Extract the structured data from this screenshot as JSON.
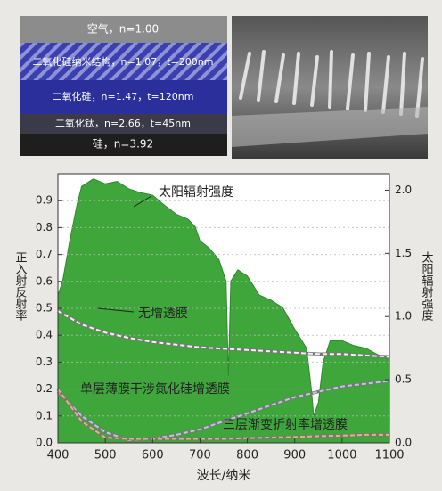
{
  "layers": [
    "空气，n=1.00",
    "二氧化硅纳米结构，n=1.07，t=200nm",
    "二氧化硅，n=1.47，t=120nm",
    "二氧化钛，n=2.66，t=45nm",
    "硅，n=3.92"
  ],
  "chart_data": {
    "type": "line",
    "xlabel": "波长/纳米",
    "ylabel": "正入射反射率",
    "y2label": "太阳辐射强度",
    "annotations": [
      "太阳辐射强度",
      "无增透膜",
      "单层薄膜干涉氮化硅增透膜",
      "三层渐变折射率增透膜"
    ],
    "xlim": [
      400,
      1100
    ],
    "xticks": [
      400,
      500,
      600,
      700,
      800,
      900,
      1000,
      1100
    ],
    "ylim": [
      0,
      1.0
    ],
    "yticks": [
      {
        "value": 0,
        "label": "0.0"
      },
      0.1,
      0.2,
      0.3,
      0.4,
      0.5,
      0.6,
      0.7,
      0.8,
      0.9
    ],
    "y2lim": [
      0,
      2.13
    ],
    "y2ticks": [
      {
        "value": 0,
        "label": "0.0"
      },
      0.5,
      {
        "value": 1,
        "label": "1.0"
      },
      1.5,
      {
        "value": 2,
        "label": "2.0"
      }
    ],
    "grid": true,
    "series": [
      {
        "name": "太阳辐射强度",
        "type": "area",
        "axis": "y2",
        "color": "#3fa63c",
        "x": [
          400,
          410,
          425,
          440,
          450,
          475,
          500,
          525,
          550,
          575,
          600,
          625,
          650,
          675,
          690,
          700,
          720,
          740,
          755,
          760,
          765,
          780,
          800,
          825,
          850,
          875,
          900,
          925,
          935,
          940,
          950,
          960,
          975,
          1000,
          1025,
          1050,
          1075,
          1100
        ],
        "values": [
          1.17,
          1.28,
          1.6,
          1.88,
          2.03,
          2.09,
          2.05,
          2.07,
          2.01,
          1.98,
          1.96,
          1.88,
          1.81,
          1.77,
          1.71,
          1.6,
          1.54,
          1.45,
          1.28,
          0.53,
          1.28,
          1.37,
          1.32,
          1.17,
          1.13,
          1.07,
          0.9,
          0.75,
          0.43,
          0.21,
          0.32,
          0.64,
          0.81,
          0.81,
          0.77,
          0.75,
          0.7,
          0.66
        ]
      },
      {
        "name": "无增透膜",
        "color": "#f2f2f2",
        "x": [
          400,
          450,
          500,
          550,
          600,
          650,
          700,
          750,
          800,
          850,
          900,
          950,
          1000,
          1050,
          1100
        ],
        "values": [
          0.49,
          0.44,
          0.41,
          0.39,
          0.375,
          0.365,
          0.355,
          0.35,
          0.345,
          0.34,
          0.335,
          0.33,
          0.33,
          0.325,
          0.32
        ]
      },
      {
        "name": "单层薄膜干涉氮化硅增透膜",
        "color": "#b9c9de",
        "x": [
          400,
          450,
          500,
          550,
          600,
          650,
          700,
          750,
          800,
          850,
          900,
          950,
          1000,
          1050,
          1100
        ],
        "values": [
          0.19,
          0.1,
          0.04,
          0.01,
          0.015,
          0.03,
          0.05,
          0.08,
          0.11,
          0.14,
          0.17,
          0.19,
          0.21,
          0.22,
          0.23
        ]
      },
      {
        "name": "三层渐变折射率增透膜",
        "color": "#e7b27a",
        "x": [
          400,
          450,
          500,
          550,
          600,
          650,
          700,
          750,
          800,
          850,
          900,
          950,
          1000,
          1050,
          1100
        ],
        "values": [
          0.2,
          0.08,
          0.02,
          0.015,
          0.015,
          0.015,
          0.015,
          0.015,
          0.018,
          0.02,
          0.022,
          0.025,
          0.027,
          0.03,
          0.03
        ]
      }
    ]
  }
}
